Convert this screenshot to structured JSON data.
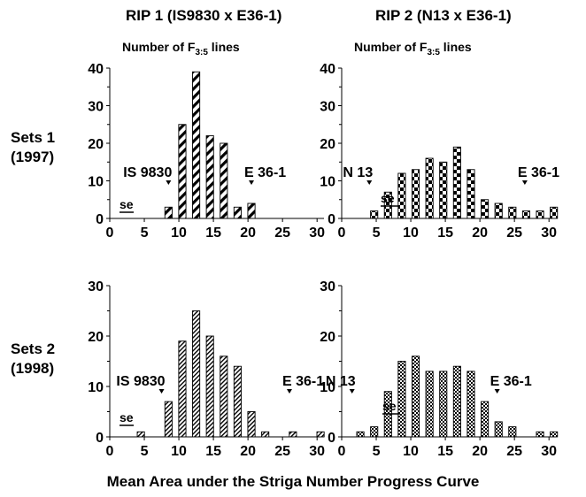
{
  "figure": {
    "columns": [
      "RIP 1 (IS9830 x E36-1)",
      "RIP 2 (N13 x E36-1)"
    ],
    "rows": [
      [
        "Sets 1",
        "(1997)"
      ],
      [
        "Sets 2",
        "(1998)"
      ]
    ],
    "xlabel": "Mean Area under the Striga Number Progress Curve"
  },
  "chart_data": [
    {
      "type": "bar",
      "population": "RIP 1 (IS9830 x E36-1)",
      "set": "Sets 1 (1997)",
      "ylabel_main": "Number of F",
      "ylabel_sub": "3:5",
      "ylabel_tail": " lines",
      "xlim": [
        0,
        31
      ],
      "ylim": [
        0,
        40
      ],
      "xticks": [
        0,
        5,
        10,
        15,
        20,
        25,
        30
      ],
      "yticks": [
        0,
        10,
        20,
        30,
        40
      ],
      "bin_width": 2,
      "pattern": "diagonal",
      "x": [
        8.5,
        10.5,
        12.5,
        14.5,
        16.5,
        18.5,
        20.5
      ],
      "values": [
        3,
        25,
        39,
        22,
        20,
        3,
        4
      ],
      "annotations": [
        {
          "text": "IS 9830",
          "x": 8.5
        },
        {
          "text": "E 36-1",
          "x": 20.5
        }
      ],
      "se_label": "se"
    },
    {
      "type": "bar",
      "population": "RIP 2 (N13 x E36-1)",
      "set": "Sets 1 (1997)",
      "ylabel_main": "Number of F",
      "ylabel_sub": "3:5",
      "ylabel_tail": " lines",
      "xlim": [
        0,
        31
      ],
      "ylim": [
        0,
        40
      ],
      "xticks": [
        0,
        5,
        10,
        15,
        20,
        25,
        30
      ],
      "yticks": [
        0,
        10,
        20,
        30,
        40
      ],
      "bin_width": 2,
      "pattern": "checker",
      "x": [
        4.7,
        6.7,
        8.7,
        10.7,
        12.7,
        14.7,
        16.7,
        18.7,
        20.7,
        22.7,
        24.7,
        26.7,
        28.7,
        30.7
      ],
      "values": [
        2,
        7,
        12,
        13,
        16,
        15,
        19,
        13,
        5,
        4,
        3,
        2,
        2,
        3
      ],
      "annotations": [
        {
          "text": "N 13",
          "x": 4
        },
        {
          "text": "E 36-1",
          "x": 26.5
        }
      ],
      "se_label": "se"
    },
    {
      "type": "bar",
      "population": "RIP 1 (IS9830 x E36-1)",
      "set": "Sets 2 (1998)",
      "xlim": [
        0,
        31
      ],
      "ylim": [
        0,
        30
      ],
      "xticks": [
        0,
        5,
        10,
        15,
        20,
        25,
        30
      ],
      "yticks": [
        0,
        10,
        20,
        30
      ],
      "bin_width": 2,
      "pattern": "fine-diagonal",
      "x": [
        4.5,
        8.5,
        10.5,
        12.5,
        14.5,
        16.5,
        18.5,
        20.5,
        22.5,
        26.5,
        30.5
      ],
      "values": [
        1,
        7,
        19,
        25,
        20,
        16,
        14,
        5,
        1,
        1,
        1
      ],
      "annotations": [
        {
          "text": "IS 9830",
          "x": 7.5
        },
        {
          "text": "E 36-1",
          "x": 26
        }
      ],
      "se_label": "se"
    },
    {
      "type": "bar",
      "population": "RIP 2 (N13 x E36-1)",
      "set": "Sets 2 (1998)",
      "xlim": [
        0,
        31
      ],
      "ylim": [
        0,
        30
      ],
      "xticks": [
        0,
        5,
        10,
        15,
        20,
        25,
        30
      ],
      "yticks": [
        0,
        10,
        20,
        30
      ],
      "bin_width": 2,
      "pattern": "fine-checker",
      "x": [
        2.7,
        4.7,
        6.7,
        8.7,
        10.7,
        12.7,
        14.7,
        16.7,
        18.7,
        20.7,
        22.7,
        24.7,
        28.7,
        30.7
      ],
      "values": [
        1,
        2,
        9,
        15,
        16,
        13,
        13,
        14,
        13,
        7,
        3,
        2,
        1,
        1
      ],
      "annotations": [
        {
          "text": "N 13",
          "x": 1.5
        },
        {
          "text": "E 36-1",
          "x": 22.5
        }
      ],
      "se_label": "se"
    }
  ]
}
